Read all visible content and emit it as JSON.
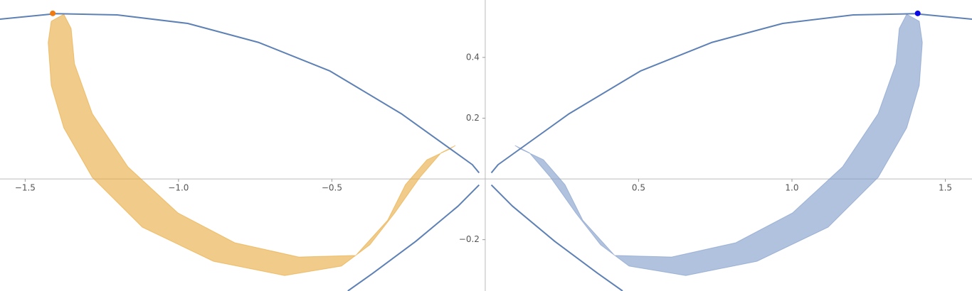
{
  "chart_data": {
    "type": "line",
    "xlim": [
      -1.582,
      1.587
    ],
    "ylim": [
      -0.369,
      0.589
    ],
    "xticks": [
      {
        "value": -1.5,
        "label": "−1.5"
      },
      {
        "value": -1.0,
        "label": "−1.0"
      },
      {
        "value": -0.5,
        "label": "−0.5"
      },
      0.5,
      {
        "value": 1.0,
        "label": "1.0"
      },
      1.5
    ],
    "yticks": [
      {
        "value": -0.2,
        "label": "−0.2"
      },
      0.2,
      0.4
    ],
    "series": [
      {
        "kind": "area",
        "color": "#e8a93a",
        "opacity": 0.6,
        "x": [
          -1.374,
          -1.415,
          -1.425,
          -1.415,
          -1.374,
          -1.281,
          -1.118,
          -0.886,
          -0.654,
          -0.469,
          -0.376,
          -0.295,
          -0.213,
          -0.144,
          -0.097,
          -0.116,
          -0.19,
          -0.26,
          -0.318,
          -0.422,
          -0.608,
          -0.817,
          -1.002,
          -1.165,
          -1.281,
          -1.339,
          -1.35
        ],
        "values": [
          0.542,
          0.519,
          0.449,
          0.308,
          0.168,
          0.005,
          -0.159,
          -0.271,
          -0.318,
          -0.287,
          -0.217,
          -0.112,
          0.005,
          0.086,
          0.11,
          0.098,
          0.063,
          -0.019,
          -0.136,
          -0.252,
          -0.257,
          -0.21,
          -0.112,
          0.04,
          0.215,
          0.379,
          0.495
        ]
      },
      {
        "kind": "area",
        "color": "#7d9ac8",
        "opacity": 0.6,
        "x": [
          1.374,
          1.415,
          1.425,
          1.415,
          1.374,
          1.281,
          1.118,
          0.886,
          0.654,
          0.469,
          0.376,
          0.295,
          0.213,
          0.144,
          0.097,
          0.116,
          0.19,
          0.26,
          0.318,
          0.422,
          0.608,
          0.817,
          1.002,
          1.165,
          1.281,
          1.339,
          1.35
        ],
        "values": [
          0.542,
          0.519,
          0.449,
          0.308,
          0.168,
          0.005,
          -0.159,
          -0.271,
          -0.318,
          -0.287,
          -0.217,
          -0.112,
          0.005,
          0.086,
          0.11,
          0.098,
          0.063,
          -0.019,
          -0.136,
          -0.252,
          -0.257,
          -0.21,
          -0.112,
          0.04,
          0.215,
          0.379,
          0.495
        ]
      },
      {
        "kind": "line",
        "color": "#5e81b5",
        "x": [
          0.02,
          0.042,
          0.274,
          0.506,
          0.738,
          0.97,
          1.2,
          1.4,
          1.587
        ],
        "values": [
          0.02,
          0.047,
          0.215,
          0.355,
          0.449,
          0.512,
          0.54,
          0.544,
          0.526
        ]
      },
      {
        "kind": "line",
        "color": "#5e81b5",
        "x": [
          -0.02,
          -0.042,
          -0.274,
          -0.506,
          -0.738,
          -0.97,
          -1.2,
          -1.4,
          -1.582
        ],
        "values": [
          0.02,
          0.047,
          0.215,
          0.355,
          0.449,
          0.512,
          0.54,
          0.544,
          0.526
        ]
      },
      {
        "kind": "line",
        "color": "#5e81b5",
        "x": [
          0.02,
          0.088,
          0.227,
          0.367,
          0.448
        ],
        "values": [
          -0.02,
          -0.089,
          -0.206,
          -0.311,
          -0.369
        ]
      },
      {
        "kind": "line",
        "color": "#5e81b5",
        "x": [
          -0.02,
          -0.088,
          -0.227,
          -0.367,
          -0.448
        ],
        "values": [
          -0.02,
          -0.089,
          -0.206,
          -0.311,
          -0.369
        ]
      },
      {
        "kind": "point",
        "color": "#f07b12",
        "x": [
          -1.41
        ],
        "values": [
          0.545
        ]
      },
      {
        "kind": "point",
        "color": "#0a0ae6",
        "x": [
          1.41
        ],
        "values": [
          0.545
        ]
      }
    ]
  }
}
